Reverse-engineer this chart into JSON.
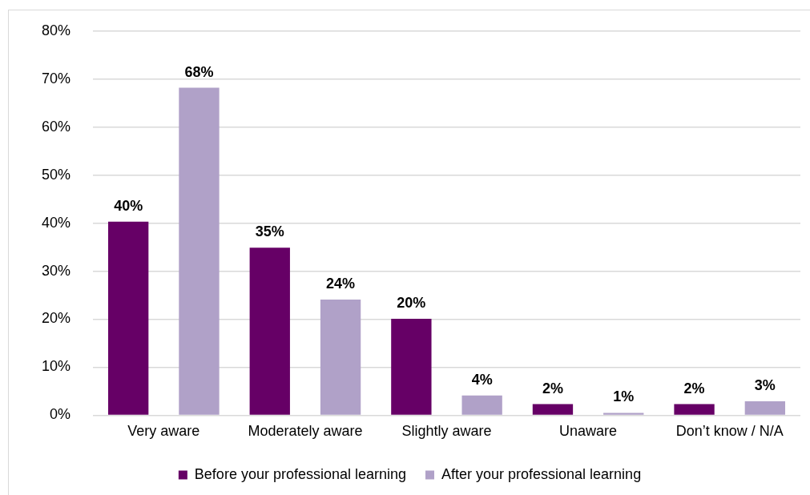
{
  "chart_data": {
    "type": "bar",
    "categories": [
      "Very aware",
      "Moderately aware",
      "Slightly aware",
      "Unaware",
      "Don’t know / N/A"
    ],
    "series": [
      {
        "name": "Before your professional learning",
        "color": "#660066",
        "values": [
          40.3,
          34.9,
          20.1,
          2.3,
          2.3
        ],
        "value_labels": [
          "40%",
          "35%",
          "20%",
          "2%",
          "2%"
        ]
      },
      {
        "name": "After your professional learning",
        "color": "#b0a1c8",
        "values": [
          68.2,
          24.1,
          4.1,
          0.5,
          2.9
        ],
        "value_labels": [
          "68%",
          "24%",
          "4%",
          "1%",
          "3%"
        ]
      }
    ],
    "ylim": [
      0,
      80
    ],
    "yticks": [
      {
        "value": 0,
        "label": "0%"
      },
      {
        "value": 10,
        "label": "10%"
      },
      {
        "value": 20,
        "label": "20%"
      },
      {
        "value": 30,
        "label": "30%"
      },
      {
        "value": 40,
        "label": "40%"
      },
      {
        "value": 50,
        "label": "50%"
      },
      {
        "value": 60,
        "label": "60%"
      },
      {
        "value": 70,
        "label": "70%"
      },
      {
        "value": 80,
        "label": "80%"
      }
    ],
    "grid": "y",
    "legend": "bottom"
  }
}
